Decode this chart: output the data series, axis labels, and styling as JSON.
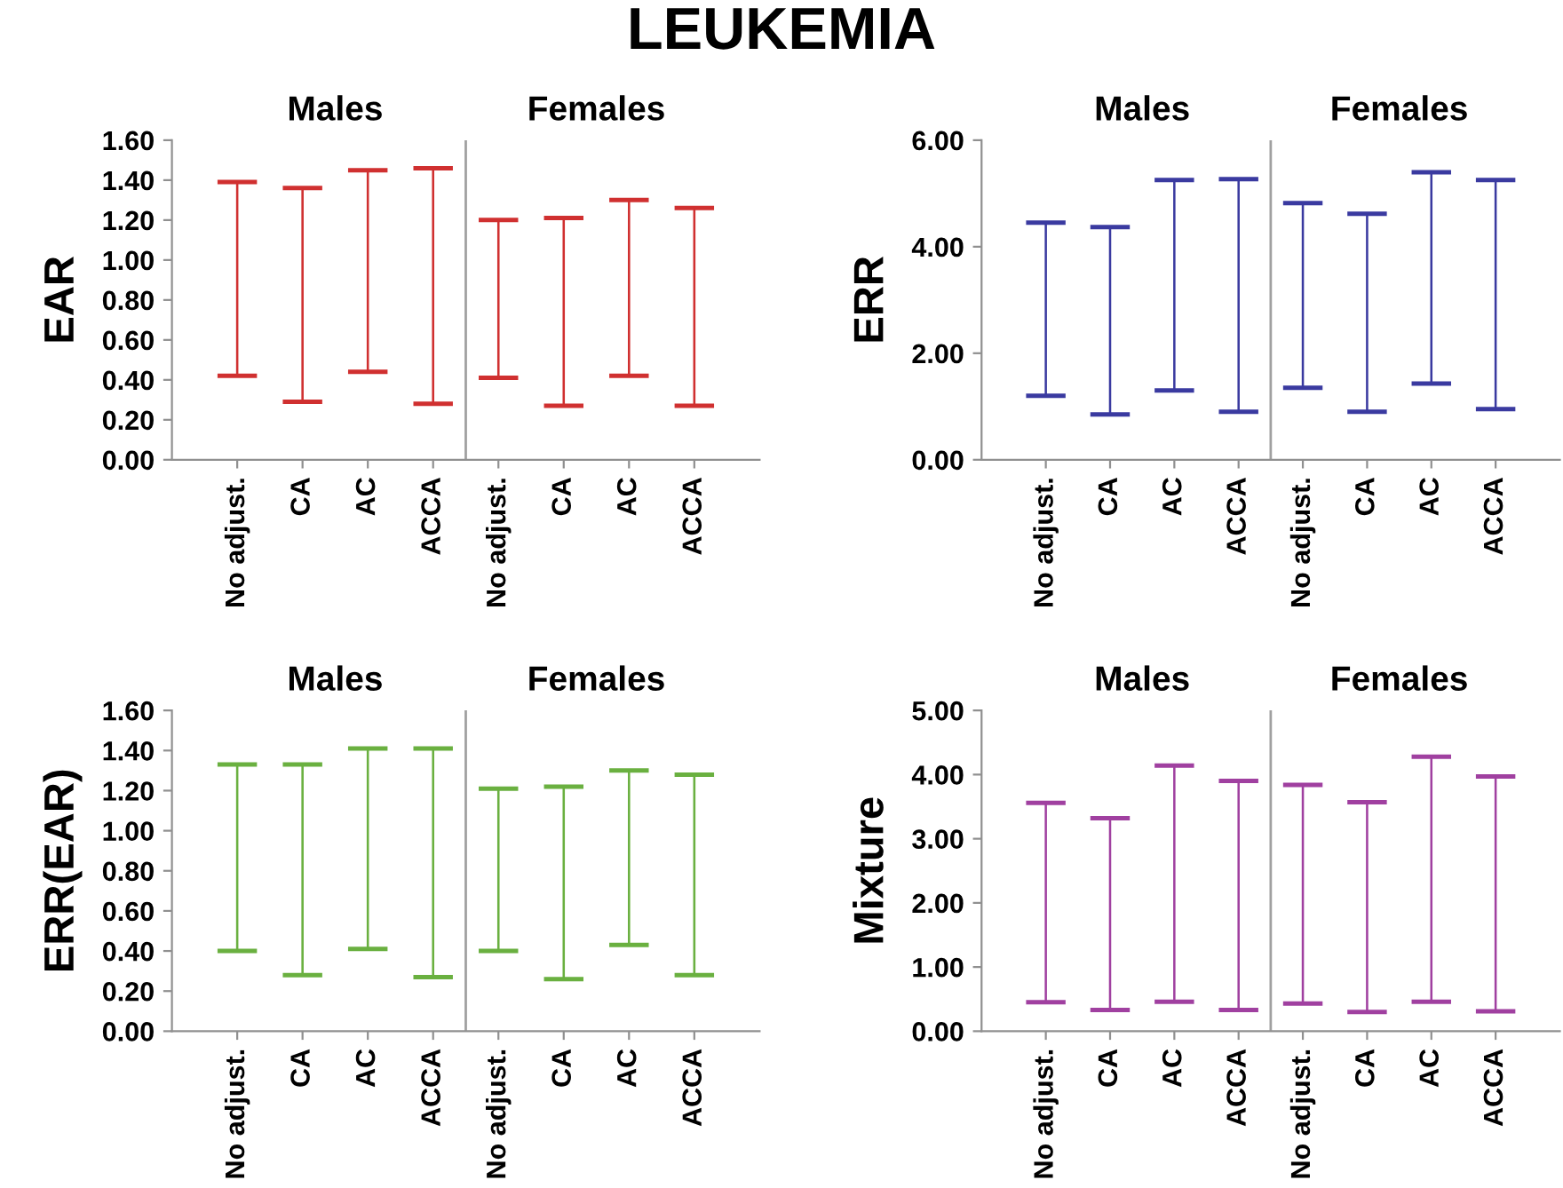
{
  "chart_data": [
    {
      "type": "bar",
      "title": "LEUKEMIA",
      "ylabel": "EAR",
      "categories": [
        "No adjust.",
        "CA",
        "AC",
        "ACCA",
        "No adjust.",
        "CA",
        "AC",
        "ACCA"
      ],
      "annotations": [
        "Males",
        "Females"
      ],
      "series": [
        {
          "color": "#d03030",
          "base": [
            0.42,
            0.29,
            0.44,
            0.28,
            0.41,
            0.27,
            0.42,
            0.27
          ],
          "values": [
            0.97,
            1.07,
            1.01,
            1.18,
            0.79,
            0.94,
            0.88,
            0.99
          ]
        }
      ],
      "ylim": [
        0,
        1.6
      ],
      "yticks": [
        {
          "value": 0,
          "label": "0.00"
        },
        {
          "value": 0.2,
          "label": "0.20"
        },
        {
          "value": 0.4,
          "label": "0.40"
        },
        {
          "value": 0.6,
          "label": "0.60"
        },
        {
          "value": 0.8,
          "label": "0.80"
        },
        {
          "value": 1.0,
          "label": "1.00"
        },
        {
          "value": 1.2,
          "label": "1.20"
        },
        {
          "value": 1.4,
          "label": "1.40"
        },
        {
          "value": 1.6,
          "label": "1.60"
        }
      ],
      "grid": false
    },
    {
      "type": "bar",
      "ylabel": "ERR",
      "categories": [
        "No adjust.",
        "CA",
        "AC",
        "ACCA",
        "No adjust.",
        "CA",
        "AC",
        "ACCA"
      ],
      "annotations": [
        "Males",
        "Females"
      ],
      "series": [
        {
          "color": "#3a3aa0",
          "base": [
            1.2,
            0.85,
            1.3,
            0.9,
            1.35,
            0.9,
            1.43,
            0.95
          ],
          "values": [
            3.25,
            3.52,
            3.95,
            4.37,
            3.47,
            3.72,
            3.97,
            4.3
          ]
        }
      ],
      "ylim": [
        0,
        6
      ],
      "yticks": [
        {
          "value": 0,
          "label": "0.00"
        },
        {
          "value": 2,
          "label": "2.00"
        },
        {
          "value": 4,
          "label": "4.00"
        },
        {
          "value": 6,
          "label": "6.00"
        }
      ],
      "grid": false
    },
    {
      "type": "bar",
      "ylabel": "ERR(EAR)",
      "categories": [
        "No adjust.",
        "CA",
        "AC",
        "ACCA",
        "No adjust.",
        "CA",
        "AC",
        "ACCA"
      ],
      "annotations": [
        "Males",
        "Females"
      ],
      "series": [
        {
          "color": "#6ab040",
          "base": [
            0.4,
            0.28,
            0.41,
            0.27,
            0.4,
            0.26,
            0.43,
            0.28
          ],
          "values": [
            0.93,
            1.05,
            1.0,
            1.14,
            0.81,
            0.96,
            0.87,
            1.0
          ]
        }
      ],
      "ylim": [
        0,
        1.6
      ],
      "yticks": [
        {
          "value": 0,
          "label": "0.00"
        },
        {
          "value": 0.2,
          "label": "0.20"
        },
        {
          "value": 0.4,
          "label": "0.40"
        },
        {
          "value": 0.6,
          "label": "0.60"
        },
        {
          "value": 0.8,
          "label": "0.80"
        },
        {
          "value": 1.0,
          "label": "1.00"
        },
        {
          "value": 1.2,
          "label": "1.20"
        },
        {
          "value": 1.4,
          "label": "1.40"
        },
        {
          "value": 1.6,
          "label": "1.60"
        }
      ],
      "grid": false
    },
    {
      "type": "bar",
      "ylabel": "Mixture",
      "categories": [
        "No adjust.",
        "CA",
        "AC",
        "ACCA",
        "No adjust.",
        "CA",
        "AC",
        "ACCA"
      ],
      "annotations": [
        "Males",
        "Females"
      ],
      "series": [
        {
          "color": "#a040a0",
          "base": [
            0.45,
            0.33,
            0.46,
            0.33,
            0.43,
            0.3,
            0.46,
            0.31
          ],
          "values": [
            3.11,
            2.99,
            3.68,
            3.57,
            3.41,
            3.27,
            3.82,
            3.66
          ]
        }
      ],
      "ylim": [
        0,
        5
      ],
      "yticks": [
        {
          "value": 0,
          "label": "0.00"
        },
        {
          "value": 1,
          "label": "1.00"
        },
        {
          "value": 2,
          "label": "2.00"
        },
        {
          "value": 3,
          "label": "3.00"
        },
        {
          "value": 4,
          "label": "4.00"
        },
        {
          "value": 5,
          "label": "5.00"
        }
      ],
      "grid": false
    }
  ]
}
